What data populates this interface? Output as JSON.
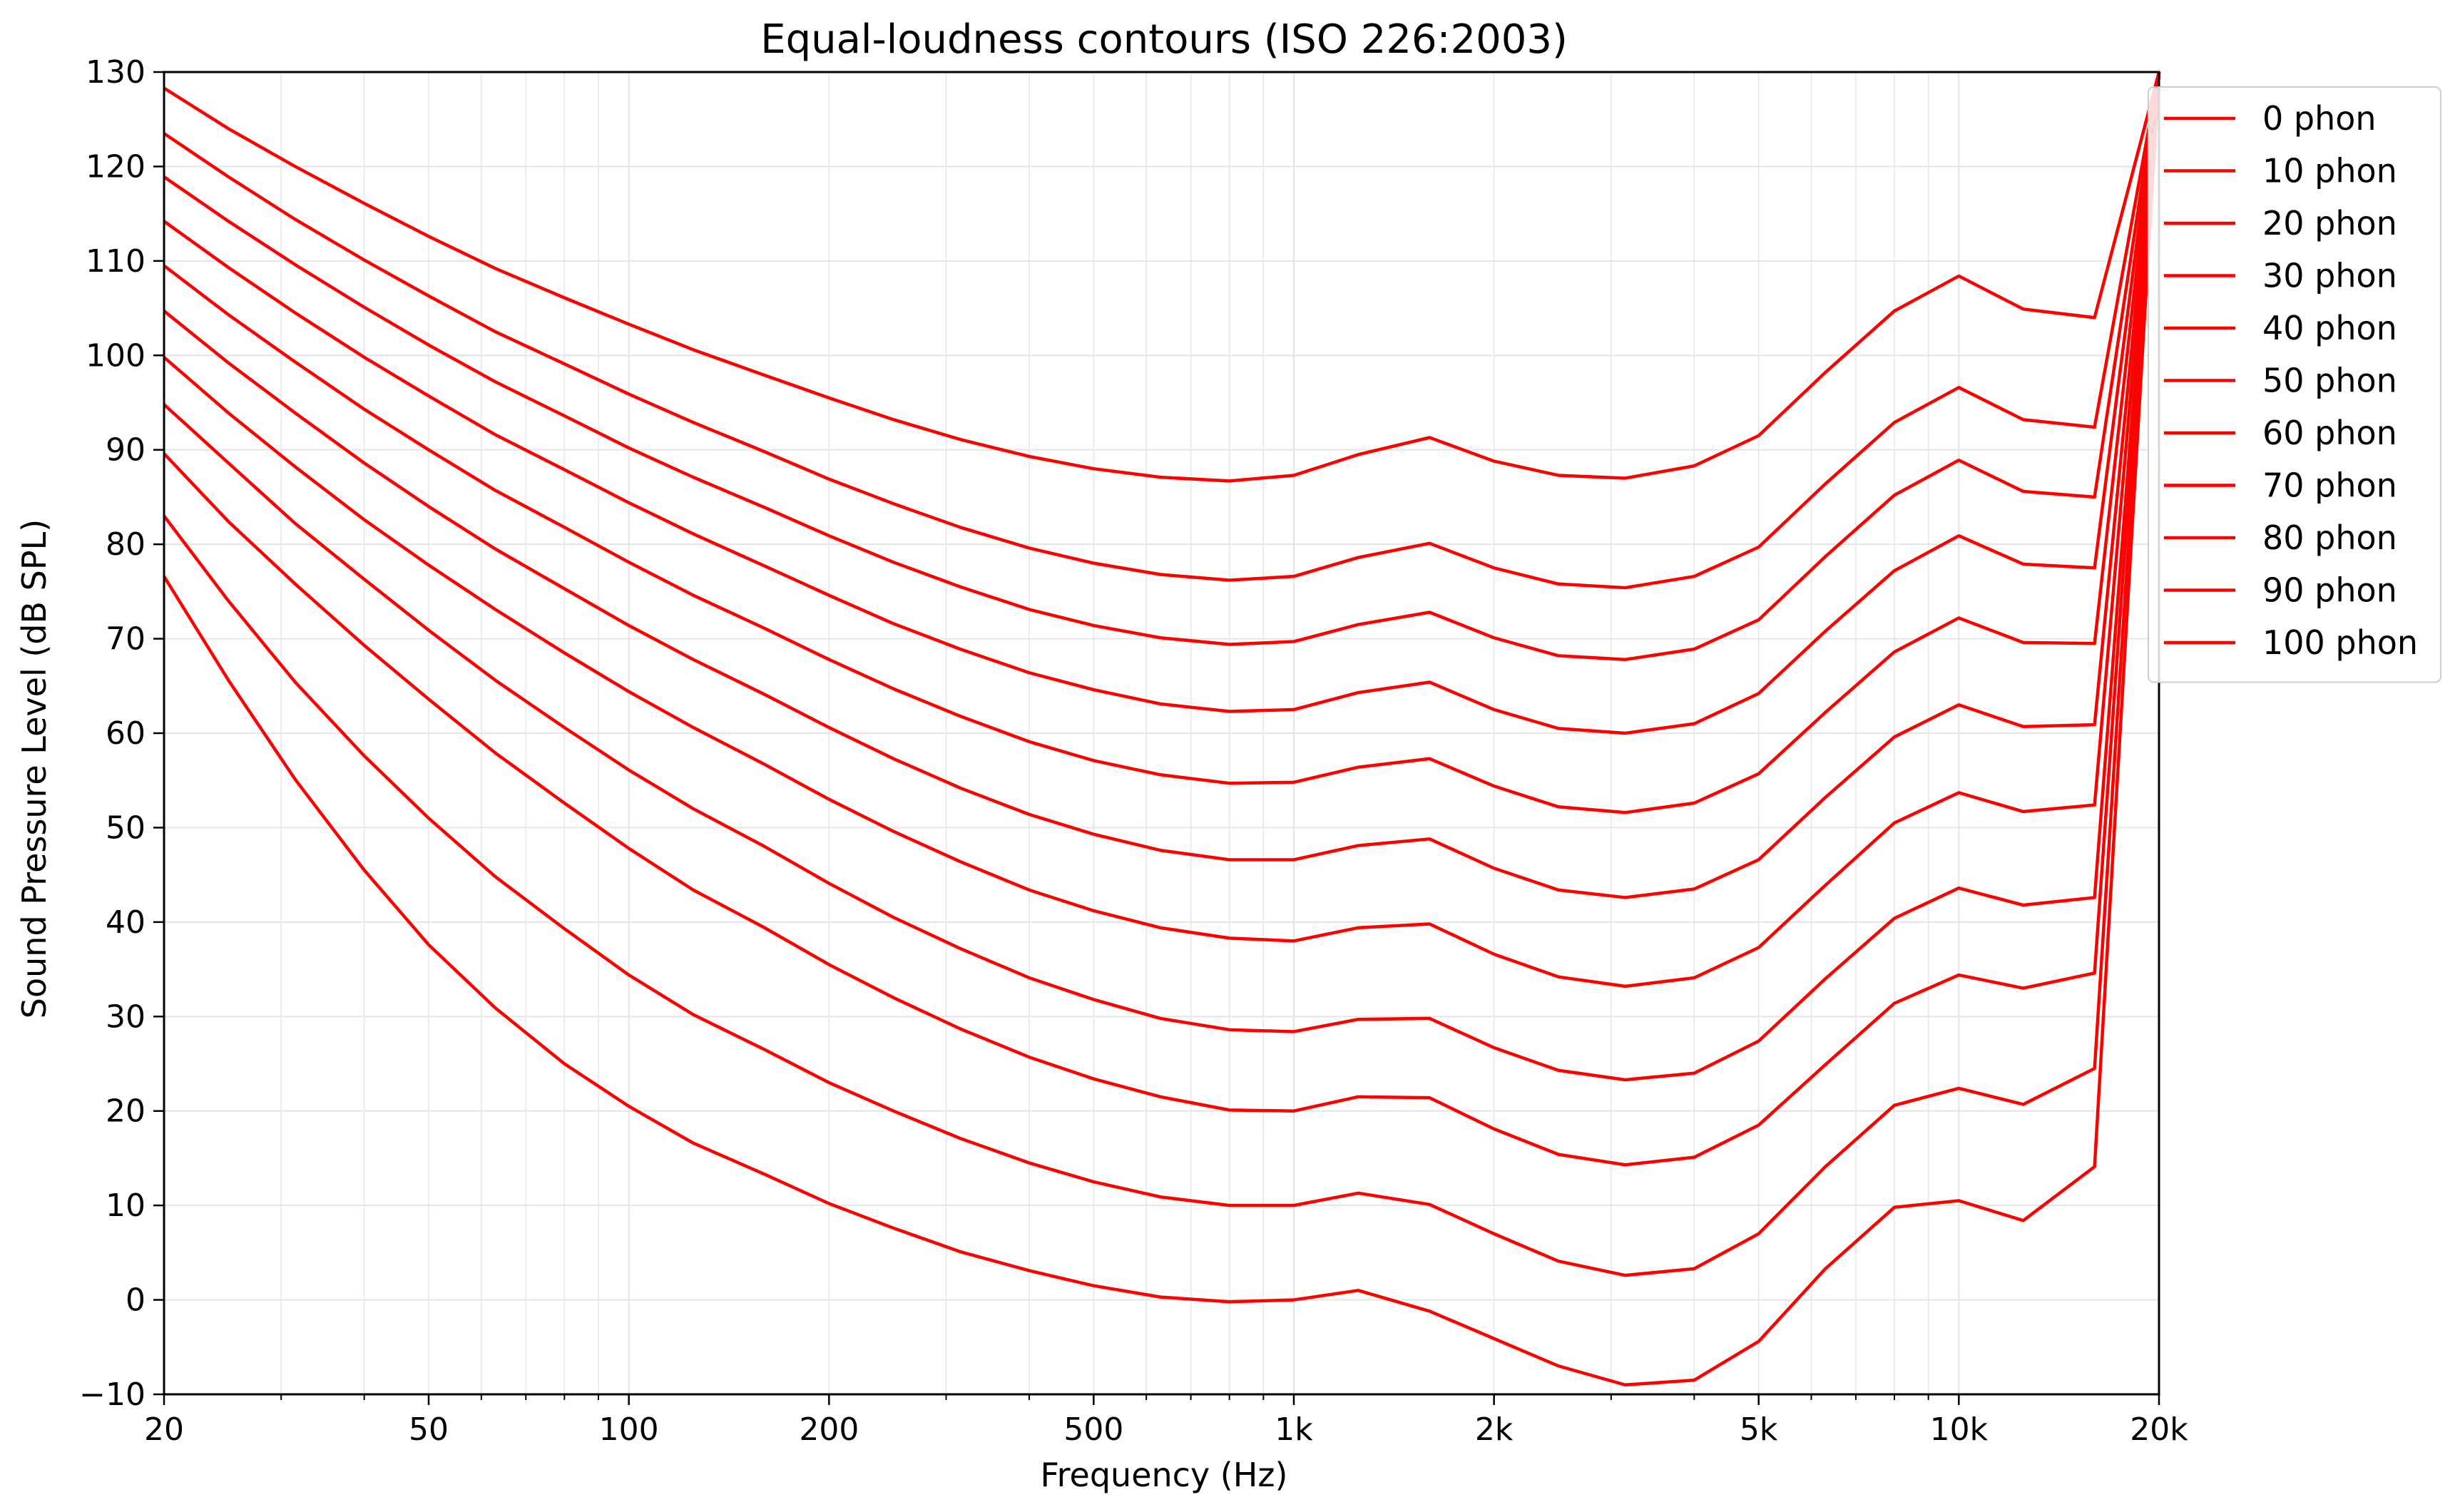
{
  "chart_data": {
    "type": "line",
    "title": "Equal-loudness contours (ISO 226:2003)",
    "xlabel": "Frequency (Hz)",
    "ylabel": "Sound Pressure Level (dB SPL)",
    "xscale": "log",
    "xlim": [
      20,
      20000
    ],
    "ylim": [
      -10,
      130
    ],
    "grid": true,
    "legend_position": "top-right",
    "line_color": "#ff0000",
    "x_ticks": [
      {
        "value": 20,
        "label": "20"
      },
      {
        "value": 50,
        "label": "50"
      },
      {
        "value": 100,
        "label": "100"
      },
      {
        "value": 200,
        "label": "200"
      },
      {
        "value": 500,
        "label": "500"
      },
      {
        "value": 1000,
        "label": "1k"
      },
      {
        "value": 2000,
        "label": "2k"
      },
      {
        "value": 5000,
        "label": "5k"
      },
      {
        "value": 10000,
        "label": "10k"
      },
      {
        "value": 20000,
        "label": "20k"
      }
    ],
    "y_ticks": [
      {
        "value": -10,
        "label": "−10"
      },
      {
        "value": 0,
        "label": "0"
      },
      {
        "value": 10,
        "label": "10"
      },
      {
        "value": 20,
        "label": "20"
      },
      {
        "value": 30,
        "label": "30"
      },
      {
        "value": 40,
        "label": "40"
      },
      {
        "value": 50,
        "label": "50"
      },
      {
        "value": 60,
        "label": "60"
      },
      {
        "value": 70,
        "label": "70"
      },
      {
        "value": 80,
        "label": "80"
      },
      {
        "value": 90,
        "label": "90"
      },
      {
        "value": 100,
        "label": "100"
      },
      {
        "value": 110,
        "label": "110"
      },
      {
        "value": 120,
        "label": "120"
      },
      {
        "value": 130,
        "label": "130"
      }
    ],
    "x": [
      20,
      25,
      31.5,
      40,
      50,
      63,
      80,
      100,
      125,
      160,
      200,
      250,
      315,
      400,
      500,
      630,
      800,
      1000,
      1250,
      1600,
      2000,
      2500,
      3150,
      4000,
      5000,
      6300,
      8000,
      10000,
      12500,
      16000,
      20000
    ],
    "series": [
      {
        "name": "0 phon",
        "values": [
          76.6,
          65.6,
          55.1,
          45.5,
          37.6,
          30.9,
          25.0,
          20.5,
          16.6,
          13.3,
          10.2,
          7.6,
          5.1,
          3.1,
          1.5,
          0.3,
          -0.2,
          0.0,
          1.0,
          -1.2,
          -4.1,
          -7.0,
          -9.0,
          -8.5,
          -4.4,
          3.3,
          9.8,
          10.5,
          8.4,
          14.1,
          130
        ]
      },
      {
        "name": "10 phon",
        "values": [
          83.0,
          74.0,
          65.4,
          57.6,
          51.0,
          44.8,
          39.3,
          34.4,
          30.2,
          26.5,
          23.0,
          20.0,
          17.1,
          14.5,
          12.5,
          10.9,
          10.0,
          10.0,
          11.3,
          10.1,
          7.0,
          4.1,
          2.6,
          3.3,
          7.0,
          14.1,
          20.6,
          22.4,
          20.7,
          24.5,
          130
        ]
      },
      {
        "name": "20 phon",
        "values": [
          89.6,
          82.4,
          75.8,
          69.3,
          63.6,
          57.9,
          52.6,
          47.8,
          43.4,
          39.4,
          35.5,
          32.0,
          28.7,
          25.7,
          23.4,
          21.5,
          20.1,
          20.0,
          21.5,
          21.4,
          18.1,
          15.4,
          14.3,
          15.1,
          18.5,
          24.9,
          31.4,
          34.4,
          33.0,
          34.6,
          130
        ]
      },
      {
        "name": "30 phon",
        "values": [
          94.8,
          88.6,
          82.2,
          76.3,
          70.9,
          65.6,
          60.6,
          56.1,
          52.0,
          48.0,
          44.1,
          40.5,
          37.2,
          34.1,
          31.8,
          29.8,
          28.6,
          28.4,
          29.7,
          29.8,
          26.7,
          24.3,
          23.3,
          24.0,
          27.4,
          34.0,
          40.4,
          43.6,
          41.8,
          42.6,
          130
        ]
      },
      {
        "name": "40 phon",
        "values": [
          99.8,
          93.9,
          88.2,
          82.6,
          77.8,
          73.1,
          68.5,
          64.4,
          60.6,
          56.7,
          53.0,
          49.6,
          46.4,
          43.4,
          41.2,
          39.4,
          38.3,
          38.0,
          39.4,
          39.8,
          36.6,
          34.2,
          33.2,
          34.1,
          37.3,
          43.9,
          50.5,
          53.7,
          51.7,
          52.4,
          130
        ]
      },
      {
        "name": "50 phon",
        "values": [
          104.7,
          99.2,
          93.9,
          88.6,
          84.0,
          79.5,
          75.3,
          71.4,
          67.8,
          64.1,
          60.6,
          57.3,
          54.2,
          51.4,
          49.3,
          47.6,
          46.6,
          46.6,
          48.1,
          48.8,
          45.7,
          43.4,
          42.6,
          43.5,
          46.6,
          53.2,
          59.6,
          63.0,
          60.7,
          60.9,
          130
        ]
      },
      {
        "name": "60 phon",
        "values": [
          109.5,
          104.3,
          99.3,
          94.3,
          90.0,
          85.7,
          81.8,
          78.1,
          74.6,
          71.1,
          67.8,
          64.7,
          61.8,
          59.1,
          57.1,
          55.6,
          54.7,
          54.8,
          56.4,
          57.3,
          54.4,
          52.2,
          51.6,
          52.6,
          55.7,
          62.2,
          68.6,
          72.2,
          69.6,
          69.5,
          130
        ]
      },
      {
        "name": "70 phon",
        "values": [
          114.2,
          109.3,
          104.5,
          99.8,
          95.7,
          91.6,
          87.9,
          84.4,
          81.1,
          77.7,
          74.6,
          71.6,
          68.9,
          66.4,
          64.6,
          63.1,
          62.3,
          62.5,
          64.3,
          65.4,
          62.5,
          60.5,
          60.0,
          61.0,
          64.2,
          70.8,
          77.2,
          80.9,
          77.9,
          77.5,
          130
        ]
      },
      {
        "name": "80 phon",
        "values": [
          118.9,
          114.2,
          109.6,
          105.1,
          101.1,
          97.2,
          93.6,
          90.2,
          87.1,
          83.9,
          80.9,
          78.1,
          75.5,
          73.1,
          71.4,
          70.1,
          69.4,
          69.7,
          71.5,
          72.8,
          70.1,
          68.2,
          67.8,
          68.9,
          72.0,
          78.7,
          85.2,
          88.9,
          85.6,
          85.0,
          130
        ]
      },
      {
        "name": "90 phon",
        "values": [
          123.5,
          118.9,
          114.4,
          110.1,
          106.3,
          102.5,
          99.1,
          95.9,
          92.9,
          89.8,
          86.9,
          84.3,
          81.8,
          79.6,
          78.0,
          76.8,
          76.2,
          76.6,
          78.6,
          80.1,
          77.5,
          75.8,
          75.4,
          76.6,
          79.7,
          86.4,
          92.9,
          96.6,
          93.2,
          92.4,
          130
        ]
      },
      {
        "name": "100 phon",
        "values": [
          128.3,
          124.0,
          120.0,
          116.1,
          112.6,
          109.2,
          106.1,
          103.3,
          100.6,
          97.9,
          95.5,
          93.2,
          91.1,
          89.3,
          88.0,
          87.1,
          86.7,
          87.3,
          89.5,
          91.3,
          88.8,
          87.3,
          87.0,
          88.3,
          91.5,
          98.2,
          104.7,
          108.4,
          104.9,
          104.0,
          130
        ]
      }
    ]
  }
}
